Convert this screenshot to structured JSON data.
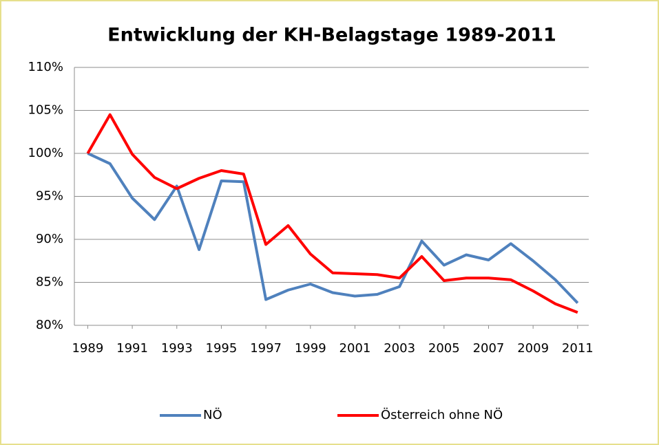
{
  "chart_data": {
    "type": "line",
    "title": "Entwicklung der KH-Belagstage 1989-2011",
    "x": [
      1989,
      1990,
      1991,
      1992,
      1993,
      1994,
      1995,
      1996,
      1997,
      1998,
      1999,
      2000,
      2001,
      2002,
      2003,
      2004,
      2005,
      2006,
      2007,
      2008,
      2009,
      2010,
      2011
    ],
    "series": [
      {
        "name": "NÖ",
        "color": "#4f81bd",
        "values": [
          100,
          98.8,
          94.8,
          92.3,
          96.2,
          88.8,
          96.8,
          96.7,
          83.0,
          84.1,
          84.8,
          83.8,
          83.4,
          83.6,
          84.5,
          89.8,
          87.0,
          88.2,
          87.6,
          89.5,
          87.5,
          85.3,
          82.6
        ]
      },
      {
        "name": "Österreich ohne NÖ",
        "color": "#ff0000",
        "values": [
          100,
          104.5,
          99.9,
          97.2,
          95.9,
          97.1,
          98.0,
          97.6,
          89.4,
          91.6,
          88.3,
          86.1,
          86.0,
          85.9,
          85.5,
          88.0,
          85.2,
          85.5,
          85.5,
          85.3,
          84.0,
          82.5,
          81.5
        ]
      }
    ],
    "xlim": [
      1988.4,
      2011.5
    ],
    "xticks": [
      1989,
      1991,
      1993,
      1995,
      1997,
      1999,
      2001,
      2003,
      2005,
      2007,
      2009,
      2011
    ],
    "ylim": [
      80,
      110
    ],
    "yticks": [
      {
        "value": 80,
        "label": "80%"
      },
      {
        "value": 85,
        "label": "85%"
      },
      {
        "value": 90,
        "label": "90%"
      },
      {
        "value": 95,
        "label": "95%"
      },
      {
        "value": 100,
        "label": "100%"
      },
      {
        "value": 105,
        "label": "105%"
      },
      {
        "value": 110,
        "label": "110%"
      }
    ],
    "grid": true,
    "legend": "bottom"
  }
}
